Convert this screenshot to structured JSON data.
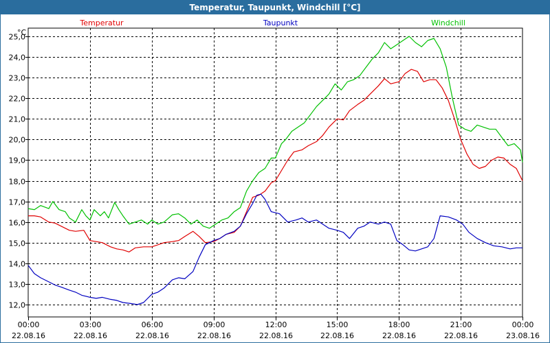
{
  "window": {
    "title": "Temperatur, Taupunkt, Windchill [°C]"
  },
  "chart_data": {
    "type": "line",
    "title": "Temperatur, Taupunkt, Windchill [°C]",
    "ylabel": "°C",
    "xlabel": "",
    "ylim": [
      11.4,
      25.4
    ],
    "xlim": [
      0,
      24
    ],
    "grid": true,
    "yticks": [
      {
        "v": 12,
        "label": "12,0"
      },
      {
        "v": 13,
        "label": "13,0"
      },
      {
        "v": 14,
        "label": "14,0"
      },
      {
        "v": 15,
        "label": "15,0"
      },
      {
        "v": 16,
        "label": "16,0"
      },
      {
        "v": 17,
        "label": "17,0"
      },
      {
        "v": 18,
        "label": "18,0"
      },
      {
        "v": 19,
        "label": "19,0"
      },
      {
        "v": 20,
        "label": "20,0"
      },
      {
        "v": 21,
        "label": "21,0"
      },
      {
        "v": 22,
        "label": "22,0"
      },
      {
        "v": 23,
        "label": "23,0"
      },
      {
        "v": 24,
        "label": "24,0"
      },
      {
        "v": 25,
        "label": "25,0"
      }
    ],
    "xticks": [
      {
        "v": 0,
        "time": "00:00",
        "date": "22.08.16"
      },
      {
        "v": 3,
        "time": "03:00",
        "date": "22.08.16"
      },
      {
        "v": 6,
        "time": "06:00",
        "date": "22.08.16"
      },
      {
        "v": 9,
        "time": "09:00",
        "date": "22.08.16"
      },
      {
        "v": 12,
        "time": "12:00",
        "date": "22.08.16"
      },
      {
        "v": 15,
        "time": "15:00",
        "date": "22.08.16"
      },
      {
        "v": 18,
        "time": "18:00",
        "date": "22.08.16"
      },
      {
        "v": 21,
        "time": "21:00",
        "date": "22.08.16"
      },
      {
        "v": 24,
        "time": "00:00",
        "date": "23.08.16"
      }
    ],
    "legend_placement": "top",
    "series": [
      {
        "name": "Temperatur",
        "color": "#e00000",
        "points": [
          [
            0.0,
            16.3
          ],
          [
            0.3,
            16.3
          ],
          [
            0.6,
            16.25
          ],
          [
            1.0,
            16.0
          ],
          [
            1.3,
            15.95
          ],
          [
            1.6,
            15.8
          ],
          [
            2.0,
            15.6
          ],
          [
            2.3,
            15.55
          ],
          [
            2.7,
            15.6
          ],
          [
            3.0,
            15.1
          ],
          [
            3.3,
            15.05
          ],
          [
            3.6,
            15.0
          ],
          [
            4.0,
            14.8
          ],
          [
            4.3,
            14.7
          ],
          [
            4.6,
            14.65
          ],
          [
            4.9,
            14.55
          ],
          [
            5.2,
            14.75
          ],
          [
            5.6,
            14.8
          ],
          [
            6.0,
            14.8
          ],
          [
            6.3,
            14.9
          ],
          [
            6.6,
            15.0
          ],
          [
            7.0,
            15.05
          ],
          [
            7.3,
            15.1
          ],
          [
            7.6,
            15.3
          ],
          [
            8.0,
            15.55
          ],
          [
            8.3,
            15.3
          ],
          [
            8.6,
            15.0
          ],
          [
            9.0,
            15.05
          ],
          [
            9.3,
            15.2
          ],
          [
            9.6,
            15.4
          ],
          [
            10.0,
            15.5
          ],
          [
            10.3,
            15.8
          ],
          [
            10.6,
            16.5
          ],
          [
            10.9,
            17.2
          ],
          [
            11.2,
            17.3
          ],
          [
            11.5,
            17.5
          ],
          [
            11.8,
            17.9
          ],
          [
            12.0,
            18.0
          ],
          [
            12.3,
            18.5
          ],
          [
            12.6,
            19.0
          ],
          [
            12.9,
            19.4
          ],
          [
            13.3,
            19.5
          ],
          [
            13.6,
            19.7
          ],
          [
            14.0,
            19.9
          ],
          [
            14.3,
            20.2
          ],
          [
            14.6,
            20.6
          ],
          [
            15.0,
            21.0
          ],
          [
            15.3,
            20.95
          ],
          [
            15.6,
            21.4
          ],
          [
            16.0,
            21.7
          ],
          [
            16.3,
            21.9
          ],
          [
            16.6,
            22.2
          ],
          [
            17.0,
            22.6
          ],
          [
            17.3,
            22.95
          ],
          [
            17.6,
            22.7
          ],
          [
            18.0,
            22.8
          ],
          [
            18.3,
            23.2
          ],
          [
            18.6,
            23.4
          ],
          [
            18.9,
            23.3
          ],
          [
            19.2,
            22.8
          ],
          [
            19.5,
            22.9
          ],
          [
            19.8,
            22.9
          ],
          [
            20.1,
            22.5
          ],
          [
            20.4,
            21.9
          ],
          [
            20.7,
            21.0
          ],
          [
            21.0,
            20.0
          ],
          [
            21.3,
            19.3
          ],
          [
            21.6,
            18.8
          ],
          [
            21.9,
            18.6
          ],
          [
            22.2,
            18.7
          ],
          [
            22.5,
            19.0
          ],
          [
            22.8,
            19.15
          ],
          [
            23.1,
            19.1
          ],
          [
            23.4,
            18.8
          ],
          [
            23.7,
            18.6
          ],
          [
            24.0,
            18.0
          ]
        ]
      },
      {
        "name": "Taupunkt",
        "color": "#0000c0",
        "points": [
          [
            0.0,
            13.9
          ],
          [
            0.3,
            13.5
          ],
          [
            0.6,
            13.3
          ],
          [
            1.0,
            13.1
          ],
          [
            1.3,
            12.95
          ],
          [
            1.6,
            12.85
          ],
          [
            2.0,
            12.7
          ],
          [
            2.3,
            12.6
          ],
          [
            2.6,
            12.45
          ],
          [
            3.0,
            12.35
          ],
          [
            3.3,
            12.3
          ],
          [
            3.6,
            12.35
          ],
          [
            4.0,
            12.25
          ],
          [
            4.3,
            12.2
          ],
          [
            4.6,
            12.1
          ],
          [
            5.0,
            12.05
          ],
          [
            5.3,
            12.0
          ],
          [
            5.6,
            12.1
          ],
          [
            6.0,
            12.5
          ],
          [
            6.3,
            12.6
          ],
          [
            6.6,
            12.8
          ],
          [
            7.0,
            13.2
          ],
          [
            7.3,
            13.3
          ],
          [
            7.6,
            13.25
          ],
          [
            8.0,
            13.6
          ],
          [
            8.3,
            14.3
          ],
          [
            8.6,
            14.9
          ],
          [
            9.0,
            15.1
          ],
          [
            9.3,
            15.2
          ],
          [
            9.6,
            15.4
          ],
          [
            10.0,
            15.55
          ],
          [
            10.3,
            15.8
          ],
          [
            10.6,
            16.4
          ],
          [
            10.9,
            16.9
          ],
          [
            11.1,
            17.3
          ],
          [
            11.3,
            17.35
          ],
          [
            11.5,
            17.1
          ],
          [
            11.8,
            16.5
          ],
          [
            12.2,
            16.4
          ],
          [
            12.6,
            16.0
          ],
          [
            13.0,
            16.1
          ],
          [
            13.3,
            16.2
          ],
          [
            13.6,
            16.0
          ],
          [
            14.0,
            16.1
          ],
          [
            14.3,
            15.9
          ],
          [
            14.6,
            15.7
          ],
          [
            15.0,
            15.6
          ],
          [
            15.3,
            15.5
          ],
          [
            15.6,
            15.2
          ],
          [
            16.0,
            15.7
          ],
          [
            16.3,
            15.8
          ],
          [
            16.6,
            16.0
          ],
          [
            17.0,
            15.9
          ],
          [
            17.3,
            16.0
          ],
          [
            17.6,
            15.9
          ],
          [
            17.9,
            15.1
          ],
          [
            18.2,
            14.9
          ],
          [
            18.5,
            14.65
          ],
          [
            18.8,
            14.6
          ],
          [
            19.1,
            14.7
          ],
          [
            19.4,
            14.8
          ],
          [
            19.7,
            15.2
          ],
          [
            20.0,
            16.3
          ],
          [
            20.4,
            16.25
          ],
          [
            20.8,
            16.1
          ],
          [
            21.1,
            15.9
          ],
          [
            21.4,
            15.5
          ],
          [
            21.8,
            15.2
          ],
          [
            22.2,
            15.0
          ],
          [
            22.6,
            14.85
          ],
          [
            23.0,
            14.8
          ],
          [
            23.4,
            14.7
          ],
          [
            23.7,
            14.75
          ],
          [
            24.0,
            14.75
          ]
        ]
      },
      {
        "name": "Windchill",
        "color": "#00c000",
        "points": [
          [
            0.0,
            16.65
          ],
          [
            0.3,
            16.6
          ],
          [
            0.6,
            16.8
          ],
          [
            1.0,
            16.65
          ],
          [
            1.2,
            17.0
          ],
          [
            1.5,
            16.6
          ],
          [
            1.8,
            16.5
          ],
          [
            2.0,
            16.2
          ],
          [
            2.3,
            16.0
          ],
          [
            2.6,
            16.6
          ],
          [
            2.8,
            16.3
          ],
          [
            3.0,
            16.1
          ],
          [
            3.2,
            16.6
          ],
          [
            3.5,
            16.3
          ],
          [
            3.7,
            16.5
          ],
          [
            3.9,
            16.2
          ],
          [
            4.2,
            16.95
          ],
          [
            4.4,
            16.6
          ],
          [
            4.6,
            16.3
          ],
          [
            4.9,
            15.9
          ],
          [
            5.2,
            16.0
          ],
          [
            5.5,
            16.1
          ],
          [
            5.8,
            15.9
          ],
          [
            6.0,
            16.1
          ],
          [
            6.3,
            15.9
          ],
          [
            6.6,
            16.0
          ],
          [
            7.0,
            16.35
          ],
          [
            7.3,
            16.4
          ],
          [
            7.6,
            16.2
          ],
          [
            7.9,
            15.9
          ],
          [
            8.2,
            16.1
          ],
          [
            8.5,
            15.8
          ],
          [
            8.8,
            15.7
          ],
          [
            9.1,
            15.9
          ],
          [
            9.4,
            16.1
          ],
          [
            9.7,
            16.2
          ],
          [
            10.0,
            16.5
          ],
          [
            10.3,
            16.7
          ],
          [
            10.6,
            17.5
          ],
          [
            10.9,
            18.0
          ],
          [
            11.2,
            18.4
          ],
          [
            11.5,
            18.6
          ],
          [
            11.8,
            19.1
          ],
          [
            12.0,
            19.1
          ],
          [
            12.3,
            19.8
          ],
          [
            12.5,
            20.0
          ],
          [
            12.8,
            20.4
          ],
          [
            13.1,
            20.6
          ],
          [
            13.4,
            20.8
          ],
          [
            13.7,
            21.2
          ],
          [
            14.0,
            21.6
          ],
          [
            14.3,
            21.9
          ],
          [
            14.6,
            22.2
          ],
          [
            14.9,
            22.7
          ],
          [
            15.2,
            22.4
          ],
          [
            15.5,
            22.8
          ],
          [
            15.8,
            22.9
          ],
          [
            16.1,
            23.1
          ],
          [
            16.4,
            23.5
          ],
          [
            16.7,
            23.9
          ],
          [
            17.0,
            24.2
          ],
          [
            17.3,
            24.7
          ],
          [
            17.6,
            24.4
          ],
          [
            17.9,
            24.6
          ],
          [
            18.2,
            24.8
          ],
          [
            18.5,
            25.0
          ],
          [
            18.8,
            24.7
          ],
          [
            19.1,
            24.5
          ],
          [
            19.4,
            24.8
          ],
          [
            19.7,
            24.9
          ],
          [
            20.0,
            24.4
          ],
          [
            20.3,
            23.5
          ],
          [
            20.6,
            22.0
          ],
          [
            20.9,
            20.7
          ],
          [
            21.2,
            20.5
          ],
          [
            21.5,
            20.4
          ],
          [
            21.8,
            20.7
          ],
          [
            22.1,
            20.6
          ],
          [
            22.4,
            20.5
          ],
          [
            22.7,
            20.5
          ],
          [
            23.0,
            20.1
          ],
          [
            23.3,
            19.7
          ],
          [
            23.6,
            19.8
          ],
          [
            23.9,
            19.5
          ],
          [
            24.0,
            18.9
          ]
        ]
      }
    ]
  }
}
